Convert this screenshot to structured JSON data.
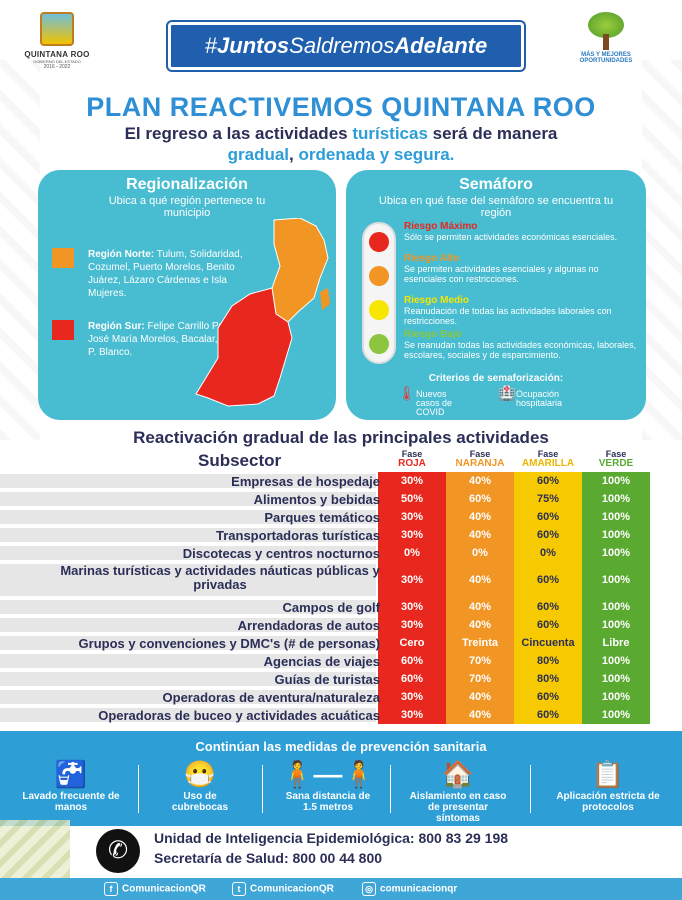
{
  "header": {
    "left_logo": {
      "name": "QUINTANA ROO",
      "subtitle": "GOBIERNO DEL ESTADO",
      "years": "2016 - 2022"
    },
    "hashtag_prefix": "#",
    "hashtag_a": "Juntos",
    "hashtag_b": "Saldremos",
    "hashtag_c": "Adelante",
    "right_logo": {
      "line1": "MÁS Y MEJORES",
      "line2": "OPORTUNIDADES"
    }
  },
  "title": "PLAN REACTIVEMOS QUINTANA ROO",
  "subtitle": {
    "p1": "El regreso a las actividades ",
    "p2": "turísticas",
    "p3": " será de manera",
    "p4": "gradual",
    "p5": ", ",
    "p6": "ordenada y segura."
  },
  "regionalizacion": {
    "title": "Regionalización",
    "sub": "Ubica a qué región pertenece tu municipio",
    "norte_label": "Región Norte:",
    "norte_text": " Tulum, Solidaridad, Cozumel, Puerto Morelos, Benito Juárez, Lázaro Cárdenas e Isla Mujeres.",
    "sur_label": "Región Sur:",
    "sur_text": " Felipe Carrillo Puerto, José María Morelos, Bacalar, Othón P. Blanco."
  },
  "semaforo": {
    "title": "Semáforo",
    "sub": "Ubica en qué fase del semáforo se encuentra tu región",
    "items": [
      {
        "label": "Riesgo Máximo",
        "text": "Sólo se permiten actividades económicas esenciales.",
        "color": "#e8281e"
      },
      {
        "label": "Riesgo Alto",
        "text": "Se permiten actividades esenciales y algunas no esenciales con restricciones.",
        "color": "#f19524"
      },
      {
        "label": "Riesgo Medio",
        "text": "Reanudación de todas las actividades laborales con restricciones.",
        "color": "#f6e600"
      },
      {
        "label": "Riesgo Bajo",
        "text": "Se reanudan todas las actividades económicas, laborales, escolares, sociales y de esparcimiento.",
        "color": "#8cc63f"
      }
    ],
    "criteria_title": "Criterios de semaforización:",
    "criteria": [
      {
        "icon": "thermometer-icon",
        "text": "Nuevos casos de COVID"
      },
      {
        "icon": "hospital-icon",
        "text": "Ocupación hospitalaria"
      }
    ]
  },
  "table": {
    "title": "Reactivación gradual de las principales actividades",
    "subsector_header": "Subsector",
    "phases": [
      {
        "fase": "Fase",
        "name": "ROJA",
        "color": "#e8281e",
        "name_color": "#e8281e"
      },
      {
        "fase": "Fase",
        "name": "NARANJA",
        "color": "#f19524",
        "name_color": "#f19524"
      },
      {
        "fase": "Fase",
        "name": "AMARILLA",
        "color": "#f6c900",
        "name_color": "#e9b800"
      },
      {
        "fase": "Fase",
        "name": "VERDE",
        "color": "#5aaa32",
        "name_color": "#5aaa32"
      }
    ],
    "rows": [
      {
        "name": "Empresas de hospedaje",
        "v": [
          "30%",
          "40%",
          "60%",
          "100%"
        ]
      },
      {
        "name": "Alimentos y bebidas",
        "v": [
          "50%",
          "60%",
          "75%",
          "100%"
        ]
      },
      {
        "name": "Parques temáticos",
        "v": [
          "30%",
          "40%",
          "60%",
          "100%"
        ]
      },
      {
        "name": "Transportadoras turísticas",
        "v": [
          "30%",
          "40%",
          "60%",
          "100%"
        ]
      },
      {
        "name": "Discotecas y centros nocturnos",
        "v": [
          "0%",
          "0%",
          "0%",
          "100%"
        ]
      },
      {
        "name": "Marinas turísticas y actividades náuticas públicas y privadas",
        "v": [
          "30%",
          "40%",
          "60%",
          "100%"
        ]
      },
      {
        "name": "Campos de golf",
        "v": [
          "30%",
          "40%",
          "60%",
          "100%"
        ]
      },
      {
        "name": "Arrendadoras de autos",
        "v": [
          "30%",
          "40%",
          "60%",
          "100%"
        ]
      },
      {
        "name": "Grupos y convenciones y DMC's (# de personas)",
        "v": [
          "Cero",
          "Treinta",
          "Cincuenta",
          "Libre"
        ]
      },
      {
        "name": "Agencias de viajes",
        "v": [
          "60%",
          "70%",
          "80%",
          "100%"
        ]
      },
      {
        "name": "Guías de turistas",
        "v": [
          "60%",
          "70%",
          "80%",
          "100%"
        ]
      },
      {
        "name": "Operadoras de aventura/naturaleza",
        "v": [
          "30%",
          "40%",
          "60%",
          "100%"
        ]
      },
      {
        "name": "Operadoras de buceo y actividades acuáticas",
        "v": [
          "30%",
          "40%",
          "60%",
          "100%"
        ]
      }
    ]
  },
  "prevencion": {
    "title": "Continúan las medidas de prevención sanitaria",
    "items": [
      {
        "icon": "handwashing-icon",
        "label": "Lavado frecuente de manos"
      },
      {
        "icon": "face-mask-icon",
        "label": "Uso de cubrebocas"
      },
      {
        "icon": "distance-icon",
        "label": "Sana distancia de 1.5 metros"
      },
      {
        "icon": "home-isolation-icon",
        "label": "Aislamiento en caso de presentar síntomas"
      },
      {
        "icon": "protocol-icon",
        "label": "Aplicación estricta de protocolos"
      }
    ]
  },
  "contacts": {
    "line1": "Unidad de Inteligencia Epidemiológica: 800 83 29 198",
    "line2": "Secretaría de Salud: 800 00 44 800"
  },
  "social": [
    {
      "icon": "facebook-icon",
      "glyph": "f",
      "handle": "ComunicacionQR"
    },
    {
      "icon": "twitter-icon",
      "glyph": "t",
      "handle": "ComunicacionQR"
    },
    {
      "icon": "instagram-icon",
      "glyph": "◎",
      "handle": "comunicacionqr"
    }
  ]
}
